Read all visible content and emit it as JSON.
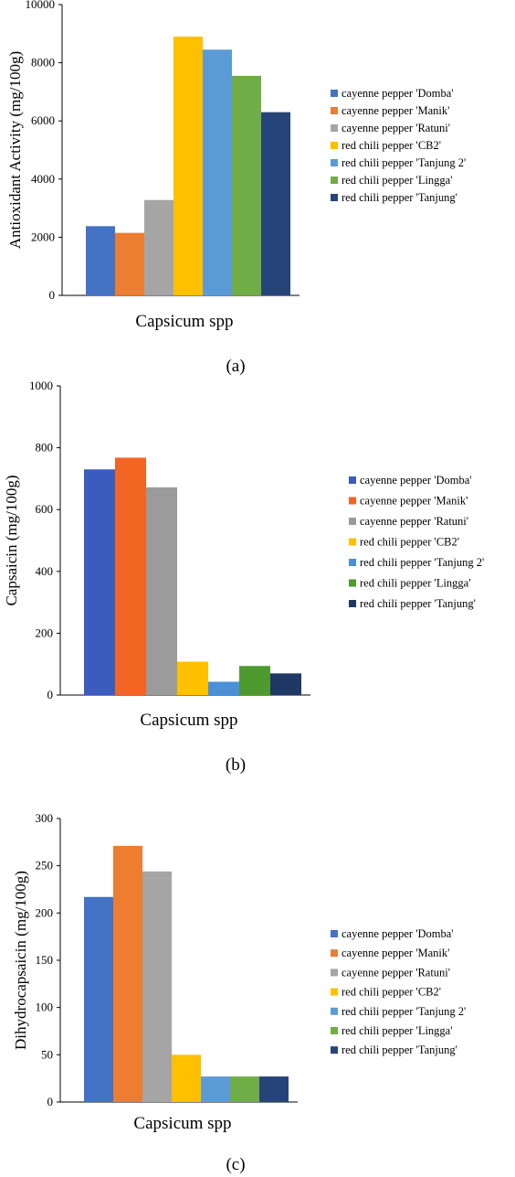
{
  "chart_data": [
    {
      "type": "bar",
      "caption": "(a)",
      "xlabel": "Capsicum spp",
      "ylabel": "Antioxidant Activity (mg/100g)",
      "ylim": [
        0,
        10000
      ],
      "yticks": [
        "0",
        "2000",
        "4000",
        "6000",
        "8000",
        "10000"
      ],
      "legend_position": "right",
      "series": [
        {
          "name": "cayenne pepper 'Domba'",
          "value": 2380,
          "color": "#4472c4"
        },
        {
          "name": "cayenne pepper 'Manik'",
          "value": 2150,
          "color": "#ed7d31"
        },
        {
          "name": "cayenne pepper 'Ratuni'",
          "value": 3280,
          "color": "#a5a5a5"
        },
        {
          "name": "red chili pepper 'CB2'",
          "value": 8900,
          "color": "#ffc000"
        },
        {
          "name": "red chili pepper 'Tanjung 2'",
          "value": 8450,
          "color": "#5b9bd5"
        },
        {
          "name": "red chili pepper 'Lingga'",
          "value": 7550,
          "color": "#70ad47"
        },
        {
          "name": "red chili pepper 'Tanjung'",
          "value": 6300,
          "color": "#264478"
        }
      ]
    },
    {
      "type": "bar",
      "caption": "(b)",
      "xlabel": "Capsicum spp",
      "ylabel": "Capsaicin (mg/100g)",
      "ylim": [
        0,
        1000
      ],
      "yticks": [
        "0",
        "200",
        "400",
        "600",
        "800",
        "1000"
      ],
      "legend_position": "right",
      "series": [
        {
          "name": "cayenne pepper 'Domba'",
          "value": 730,
          "color": "#3b5bbf"
        },
        {
          "name": "cayenne pepper 'Manik'",
          "value": 768,
          "color": "#f26522"
        },
        {
          "name": "cayenne pepper 'Ratuni'",
          "value": 672,
          "color": "#9b9b9b"
        },
        {
          "name": "red chili pepper 'CB2'",
          "value": 108,
          "color": "#ffc000"
        },
        {
          "name": "red chili pepper 'Tanjung 2'",
          "value": 43,
          "color": "#4a90d9"
        },
        {
          "name": "red chili pepper 'Lingga'",
          "value": 94,
          "color": "#4e9a2e"
        },
        {
          "name": "red chili pepper 'Tanjung'",
          "value": 70,
          "color": "#1f3864"
        }
      ]
    },
    {
      "type": "bar",
      "caption": "(c)",
      "xlabel": "Capsicum spp",
      "ylabel": "Dihydrocapsaicin (mg/100g)",
      "ylim": [
        0,
        300
      ],
      "yticks": [
        "0",
        "50",
        "100",
        "150",
        "200",
        "250",
        "300"
      ],
      "legend_position": "right",
      "series": [
        {
          "name": "cayenne pepper 'Domba'",
          "value": 217,
          "color": "#4472c4"
        },
        {
          "name": "cayenne pepper 'Manik'",
          "value": 271,
          "color": "#ed7d31"
        },
        {
          "name": "cayenne pepper 'Ratuni'",
          "value": 244,
          "color": "#a5a5a5"
        },
        {
          "name": "red chili pepper 'CB2'",
          "value": 50,
          "color": "#ffc000"
        },
        {
          "name": "red chili pepper 'Tanjung 2'",
          "value": 27,
          "color": "#5b9bd5"
        },
        {
          "name": "red chili pepper 'Lingga'",
          "value": 27,
          "color": "#70ad47"
        },
        {
          "name": "red chili pepper 'Tanjung'",
          "value": 27,
          "color": "#264478"
        }
      ]
    }
  ]
}
